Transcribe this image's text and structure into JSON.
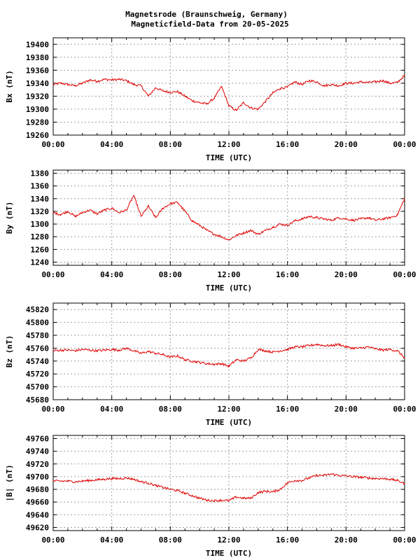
{
  "title_line1": "Magnetsrode (Braunschweig, Germany)",
  "title_line2": "Magneticfield-Data from 20-05-2025",
  "trace_color": "#e00000",
  "chart_data": [
    {
      "type": "line",
      "ylabel": "Bx (nT)",
      "xlabel": "TIME (UTC)",
      "x_ticks": [
        "00:00",
        "04:00",
        "08:00",
        "12:00",
        "16:00",
        "20:00",
        "00:00"
      ],
      "xlim": [
        0,
        24
      ],
      "ylim": [
        19260,
        19410
      ],
      "y_ticks": [
        19260,
        19280,
        19300,
        19320,
        19340,
        19360,
        19380,
        19400
      ],
      "grid": true,
      "x_hours": [
        0,
        0.5,
        1,
        1.5,
        2,
        2.5,
        3,
        3.5,
        4,
        4.5,
        5,
        5.5,
        6,
        6.5,
        7,
        7.5,
        8,
        8.5,
        9,
        9.5,
        10,
        10.5,
        11,
        11.5,
        12,
        12.5,
        13,
        13.5,
        14,
        14.5,
        15,
        15.5,
        16,
        16.5,
        17,
        17.5,
        18,
        18.5,
        19,
        19.5,
        20,
        20.5,
        21,
        21.5,
        22,
        22.5,
        23,
        23.5,
        24
      ],
      "values": [
        19338,
        19340,
        19338,
        19336,
        19340,
        19345,
        19343,
        19346,
        19345,
        19346,
        19344,
        19338,
        19336,
        19320,
        19333,
        19328,
        19326,
        19327,
        19320,
        19313,
        19310,
        19308,
        19317,
        19335,
        19305,
        19298,
        19310,
        19302,
        19300,
        19312,
        19325,
        19332,
        19334,
        19342,
        19338,
        19344,
        19342,
        19336,
        19338,
        19336,
        19340,
        19340,
        19342,
        19341,
        19342,
        19344,
        19340,
        19341,
        19352
      ]
    },
    {
      "type": "line",
      "ylabel": "By (nT)",
      "xlabel": "TIME (UTC)",
      "x_ticks": [
        "00:00",
        "04:00",
        "08:00",
        "12:00",
        "16:00",
        "20:00",
        "00:00"
      ],
      "xlim": [
        0,
        24
      ],
      "ylim": [
        1235,
        1385
      ],
      "y_ticks": [
        1240,
        1260,
        1280,
        1300,
        1320,
        1340,
        1360,
        1380
      ],
      "grid": true,
      "x_hours": [
        0,
        0.5,
        1,
        1.5,
        2,
        2.5,
        3,
        3.5,
        4,
        4.5,
        5,
        5.5,
        6,
        6.5,
        7,
        7.5,
        8,
        8.5,
        9,
        9.5,
        10,
        10.5,
        11,
        11.5,
        12,
        12.5,
        13,
        13.5,
        14,
        14.5,
        15,
        15.5,
        16,
        16.5,
        17,
        17.5,
        18,
        18.5,
        19,
        19.5,
        20,
        20.5,
        21,
        21.5,
        22,
        22.5,
        23,
        23.5,
        24
      ],
      "values": [
        1318,
        1315,
        1320,
        1312,
        1318,
        1322,
        1316,
        1322,
        1325,
        1318,
        1322,
        1345,
        1312,
        1328,
        1310,
        1325,
        1332,
        1334,
        1320,
        1305,
        1298,
        1290,
        1284,
        1280,
        1275,
        1282,
        1286,
        1290,
        1284,
        1290,
        1295,
        1300,
        1298,
        1305,
        1308,
        1312,
        1310,
        1308,
        1306,
        1310,
        1308,
        1306,
        1308,
        1310,
        1306,
        1308,
        1310,
        1314,
        1340
      ]
    },
    {
      "type": "line",
      "ylabel": "Bz (nT)",
      "xlabel": "TIME (UTC)",
      "x_ticks": [
        "00:00",
        "04:00",
        "08:00",
        "12:00",
        "16:00",
        "20:00",
        "00:00"
      ],
      "xlim": [
        0,
        24
      ],
      "ylim": [
        45680,
        45830
      ],
      "y_ticks": [
        45680,
        45700,
        45720,
        45740,
        45760,
        45780,
        45800,
        45820
      ],
      "grid": true,
      "x_hours": [
        0,
        0.5,
        1,
        1.5,
        2,
        2.5,
        3,
        3.5,
        4,
        4.5,
        5,
        5.5,
        6,
        6.5,
        7,
        7.5,
        8,
        8.5,
        9,
        9.5,
        10,
        10.5,
        11,
        11.5,
        12,
        12.5,
        13,
        13.5,
        14,
        14.5,
        15,
        15.5,
        16,
        16.5,
        17,
        17.5,
        18,
        18.5,
        19,
        19.5,
        20,
        20.5,
        21,
        21.5,
        22,
        22.5,
        23,
        23.5,
        24
      ],
      "values": [
        45756,
        45757,
        45757,
        45756,
        45758,
        45757,
        45756,
        45757,
        45758,
        45757,
        45760,
        45756,
        45752,
        45755,
        45752,
        45750,
        45746,
        45748,
        45742,
        45740,
        45738,
        45736,
        45735,
        45736,
        45732,
        45742,
        45740,
        45745,
        45758,
        45756,
        45754,
        45756,
        45758,
        45762,
        45762,
        45764,
        45766,
        45764,
        45764,
        45766,
        45762,
        45760,
        45760,
        45762,
        45759,
        45757,
        45758,
        45756,
        45745
      ]
    },
    {
      "type": "line",
      "ylabel": "|B| (nT)",
      "xlabel": "TIME (UTC)",
      "x_ticks": [
        "00:00",
        "04:00",
        "08:00",
        "12:00",
        "16:00",
        "20:00",
        "00:00"
      ],
      "xlim": [
        0,
        24
      ],
      "ylim": [
        49615,
        49765
      ],
      "y_ticks": [
        49620,
        49640,
        49660,
        49680,
        49700,
        49720,
        49740,
        49760
      ],
      "grid": true,
      "x_hours": [
        0,
        0.5,
        1,
        1.5,
        2,
        2.5,
        3,
        3.5,
        4,
        4.5,
        5,
        5.5,
        6,
        6.5,
        7,
        7.5,
        8,
        8.5,
        9,
        9.5,
        10,
        10.5,
        11,
        11.5,
        12,
        12.5,
        13,
        13.5,
        14,
        14.5,
        15,
        15.5,
        16,
        16.5,
        17,
        17.5,
        18,
        18.5,
        19,
        19.5,
        20,
        20.5,
        21,
        21.5,
        22,
        22.5,
        23,
        23.5,
        24
      ],
      "values": [
        49693,
        49693,
        49693,
        49692,
        49693,
        49694,
        49695,
        49696,
        49697,
        49697,
        49698,
        49696,
        49692,
        49690,
        49686,
        49683,
        49680,
        49678,
        49674,
        49670,
        49666,
        49663,
        49662,
        49663,
        49662,
        49668,
        49666,
        49666,
        49675,
        49677,
        49676,
        49680,
        49690,
        49694,
        49694,
        49698,
        49702,
        49702,
        49704,
        49702,
        49701,
        49700,
        49699,
        49698,
        49697,
        49697,
        49696,
        49694,
        49689
      ]
    }
  ]
}
